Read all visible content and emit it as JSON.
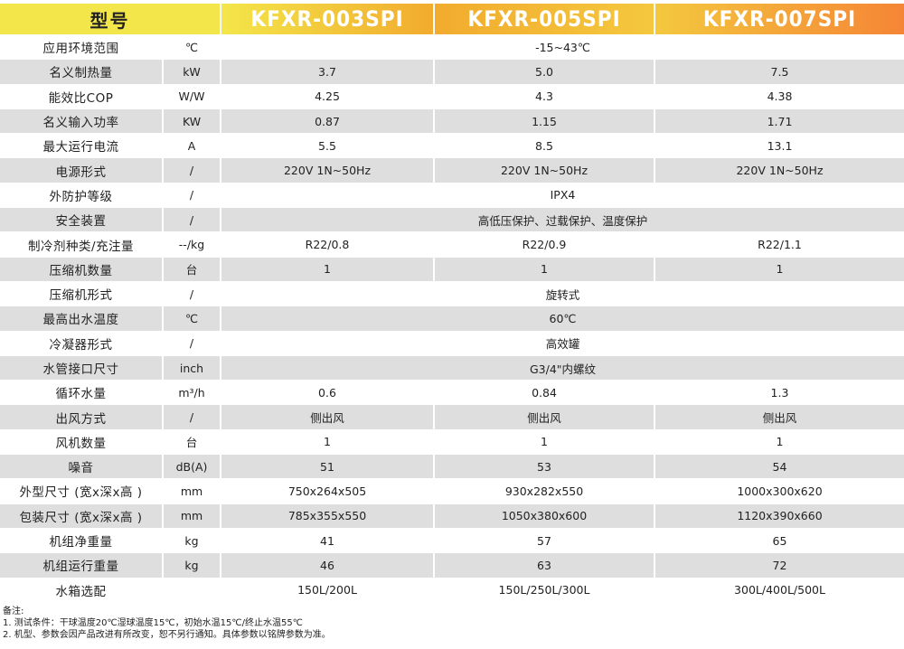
{
  "header": {
    "name_label": "型号",
    "models": [
      "KFXR-003SPI",
      "KFXR-005SPI",
      "KFXR-007SPI"
    ],
    "colors": [
      "#f3e64a",
      "#f2ab2e",
      "#f4c83e",
      "#f58536"
    ]
  },
  "row_colors": {
    "odd": "#ffffff",
    "even": "#dedede"
  },
  "rows": [
    {
      "name": "应用环境范围",
      "unit": "℃",
      "merged": "-15~43℃"
    },
    {
      "name": "名义制热量",
      "unit": "kW",
      "values": [
        "3.7",
        "5.0",
        "7.5"
      ]
    },
    {
      "name": "能效比COP",
      "unit": "W/W",
      "values": [
        "4.25",
        "4.3",
        "4.38"
      ]
    },
    {
      "name": "名义输入功率",
      "unit": "KW",
      "values": [
        "0.87",
        "1.15",
        "1.71"
      ]
    },
    {
      "name": "最大运行电流",
      "unit": "A",
      "values": [
        "5.5",
        "8.5",
        "13.1"
      ]
    },
    {
      "name": "电源形式",
      "unit": "/",
      "values": [
        "220V 1N~50Hz",
        "220V 1N~50Hz",
        "220V 1N~50Hz"
      ]
    },
    {
      "name": "外防护等级",
      "unit": "/",
      "merged": "IPX4"
    },
    {
      "name": "安全装置",
      "unit": "/",
      "merged": "高低压保护、过载保护、温度保护"
    },
    {
      "name": "制冷剂种类/充注量",
      "unit": "--/kg",
      "values": [
        "R22/0.8",
        "R22/0.9",
        "R22/1.1"
      ]
    },
    {
      "name": "压缩机数量",
      "unit": "台",
      "values": [
        "1",
        "1",
        "1"
      ]
    },
    {
      "name": "压缩机形式",
      "unit": "/",
      "merged": "旋转式"
    },
    {
      "name": "最高出水温度",
      "unit": "℃",
      "merged": "60℃"
    },
    {
      "name": "冷凝器形式",
      "unit": "/",
      "merged": "高效罐"
    },
    {
      "name": "水管接口尺寸",
      "unit": "inch",
      "merged": "G3/4\"内螺纹"
    },
    {
      "name": "循环水量",
      "unit": "m³/h",
      "values": [
        "0.6",
        "0.84",
        "1.3"
      ]
    },
    {
      "name": "出风方式",
      "unit": "/",
      "values": [
        "侧出风",
        "侧出风",
        "侧出风"
      ]
    },
    {
      "name": "风机数量",
      "unit": "台",
      "values": [
        "1",
        "1",
        "1"
      ]
    },
    {
      "name": "噪音",
      "unit": "dB(A)",
      "values": [
        "51",
        "53",
        "54"
      ]
    },
    {
      "name": "外型尺寸 (宽x深x高 )",
      "unit": "mm",
      "values": [
        "750x264x505",
        "930x282x550",
        "1000x300x620"
      ]
    },
    {
      "name": "包装尺寸 (宽x深x高 )",
      "unit": "mm",
      "values": [
        "785x355x550",
        "1050x380x600",
        "1120x390x660"
      ]
    },
    {
      "name": "机组净重量",
      "unit": "kg",
      "values": [
        "41",
        "57",
        "65"
      ]
    },
    {
      "name": "机组运行重量",
      "unit": "kg",
      "values": [
        "46",
        "63",
        "72"
      ]
    },
    {
      "name": "水箱选配",
      "unit": "",
      "values": [
        "150L/200L",
        "150L/250L/300L",
        "300L/400L/500L"
      ]
    }
  ],
  "notes": {
    "title": "备注:",
    "lines": [
      "1. 测试条件：干球温度20℃湿球温度15℃，初始水温15℃/终止水温55℃",
      "2. 机型、参数会因产品改进有所改变，恕不另行通知。具体参数以铭牌参数为准。"
    ]
  }
}
